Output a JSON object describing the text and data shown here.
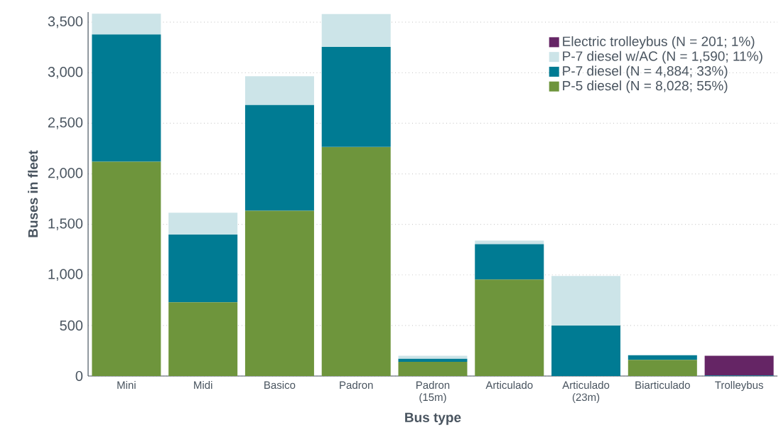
{
  "chart_data": {
    "type": "bar",
    "stacked": true,
    "xlabel": "Bus type",
    "ylabel": "Buses in fleet",
    "categories": [
      "Mini",
      "Midi",
      "Basico",
      "Padron",
      "Padron (15m)",
      "Articulado",
      "Articulado (23m)",
      "Biarticulado",
      "Trolleybus"
    ],
    "series": [
      {
        "name": "P-5 diesel (N = 8,028; 55%)",
        "color": "#6e953c",
        "values": [
          2120,
          730,
          1635,
          2265,
          140,
          955,
          null,
          160,
          null
        ]
      },
      {
        "name": "P-7 diesel (N = 4,884; 33%)",
        "color": "#007b93",
        "values": [
          1260,
          670,
          1045,
          990,
          30,
          350,
          500,
          45,
          5
        ]
      },
      {
        "name": "P-7 diesel w/AC (N = 1,590; 11%)",
        "color": "#cce4e8",
        "values": [
          205,
          215,
          285,
          325,
          30,
          35,
          490,
          null,
          null
        ]
      },
      {
        "name": "Electric trolleybus (N = 201; 1%)",
        "color": "#652565",
        "values": [
          null,
          null,
          null,
          null,
          null,
          null,
          null,
          null,
          195
        ]
      }
    ],
    "ylim": [
      0,
      3600
    ],
    "yticks": [
      0,
      500,
      {
        "value": 1000,
        "label": "1,000"
      },
      {
        "value": 1500,
        "label": "1,500"
      },
      {
        "value": 2000,
        "label": "2,000"
      },
      {
        "value": 2500,
        "label": "2,500"
      },
      {
        "value": 3000,
        "label": "3,000"
      },
      {
        "value": 3500,
        "label": "3,500"
      }
    ],
    "grid": "y",
    "legend": "top right"
  }
}
